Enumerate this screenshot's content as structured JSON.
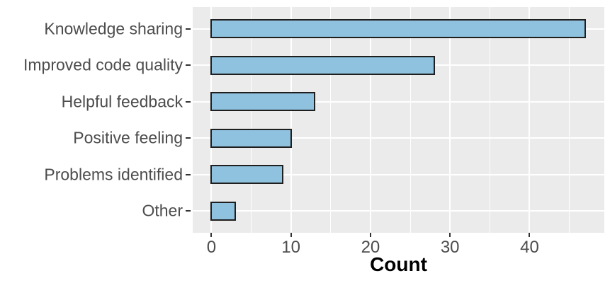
{
  "chart_data": {
    "type": "bar",
    "orientation": "horizontal",
    "title": "",
    "xlabel": "Count",
    "ylabel": "",
    "categories": [
      "Knowledge sharing",
      "Improved code quality",
      "Helpful feedback",
      "Positive feeling",
      "Problems identified",
      "Other"
    ],
    "values": [
      47,
      28,
      13,
      10,
      9,
      3
    ],
    "x_ticks": [
      0,
      10,
      20,
      30,
      40
    ],
    "x_minor_ticks": [
      5,
      15,
      25,
      35,
      45
    ],
    "xlim": [
      -2.35,
      49.4
    ],
    "grid": "on",
    "legend": "none"
  },
  "colors": {
    "bar_fill": "#8FC2DE",
    "bar_border": "#1F1F1F",
    "panel_background": "#EBEBEB",
    "gridline": "#FFFFFF",
    "axis_text": "#4D4D4D",
    "axis_title": "#000000",
    "tick_mark": "#333333",
    "figure_background": "#FFFFFF"
  }
}
